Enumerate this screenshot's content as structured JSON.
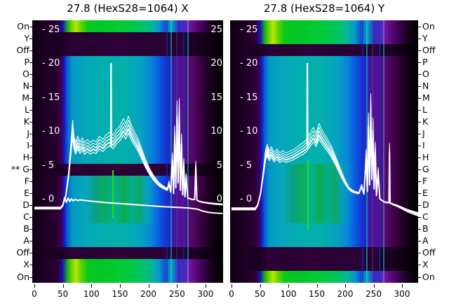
{
  "figure": {
    "background": "#ffffff",
    "colors": {
      "heat_green": "#00c828",
      "heat_yellowgreen": "#b6ea00",
      "heat_teal": "#01aeae",
      "heat_blue": "#0b55e2",
      "heat_purple": "#571092",
      "heat_dark_purple": "#2a0134",
      "heat_black": "#000000",
      "curve": "#ffffff",
      "artifact_green": "#2ce000",
      "text": "#000000"
    }
  },
  "chart_data": [
    {
      "type": "heatmap",
      "title": "27.8 (HexS28=1064) X",
      "x_ticks": [
        0,
        50,
        100,
        150,
        200,
        250,
        300
      ],
      "x_range": [
        0,
        330
      ],
      "inner_y_ticks": [
        25,
        20,
        15,
        10,
        5,
        0
      ],
      "inner_y_ticks_right": true,
      "legend": "none",
      "grid": false,
      "row_labels": [
        {
          "label": "On",
          "band": "green"
        },
        {
          "label": "Y",
          "band": "dark"
        },
        {
          "label": "Off",
          "band": "dark"
        },
        {
          "label": "P",
          "band": "teal"
        },
        {
          "label": "O",
          "band": "teal"
        },
        {
          "label": "N",
          "band": "teal"
        },
        {
          "label": "M",
          "band": "teal"
        },
        {
          "label": "L",
          "band": "teal"
        },
        {
          "label": "K",
          "band": "teal"
        },
        {
          "label": "J",
          "band": "teal"
        },
        {
          "label": "I",
          "band": "teal"
        },
        {
          "label": "H",
          "band": "teal"
        },
        {
          "label": "G",
          "band": "dark",
          "mark": "**"
        },
        {
          "label": "F",
          "band": "tealgreen"
        },
        {
          "label": "E",
          "band": "tealgreen"
        },
        {
          "label": "D",
          "band": "tealgreen"
        },
        {
          "label": "C",
          "band": "tealgreen"
        },
        {
          "label": "B",
          "band": "teal"
        },
        {
          "label": "A",
          "band": "teal"
        },
        {
          "label": "Off",
          "band": "dark"
        },
        {
          "label": "X",
          "band": "green"
        },
        {
          "label": "On",
          "band": "green"
        }
      ],
      "series": [
        {
          "name": "beam-profile-bundle",
          "scales": [
            1,
            1.06,
            1.12,
            0.94,
            1.18
          ],
          "points": [
            [
              0,
              -1.2
            ],
            [
              46,
              -1.2
            ],
            [
              50,
              -0.8
            ],
            [
              55,
              0.5
            ],
            [
              60,
              3.5
            ],
            [
              64,
              7
            ],
            [
              67,
              9.9
            ],
            [
              69,
              8.2
            ],
            [
              72,
              7.1
            ],
            [
              76,
              7.9
            ],
            [
              80,
              7.2
            ],
            [
              84,
              7.7
            ],
            [
              88,
              7.1
            ],
            [
              93,
              7.5
            ],
            [
              98,
              7.1
            ],
            [
              103,
              7.4
            ],
            [
              108,
              7.2
            ],
            [
              114,
              7.9
            ],
            [
              120,
              7.5
            ],
            [
              126,
              8.1
            ],
            [
              132,
              8.4
            ],
            [
              138,
              8.0
            ],
            [
              144,
              8.7
            ],
            [
              150,
              9.2
            ],
            [
              156,
              10.1
            ],
            [
              160,
              9.5
            ],
            [
              165,
              10.4
            ],
            [
              170,
              9.3
            ],
            [
              175,
              8.5
            ],
            [
              181,
              7.7
            ],
            [
              188,
              6.4
            ],
            [
              195,
              5.0
            ],
            [
              202,
              3.9
            ],
            [
              209,
              3.0
            ],
            [
              216,
              2.3
            ],
            [
              222,
              1.9
            ],
            [
              228,
              1.6
            ],
            [
              233,
              1.4
            ],
            [
              236,
              2.3
            ],
            [
              239,
              1.1
            ],
            [
              242,
              5.8
            ],
            [
              244,
              0.9
            ],
            [
              246,
              9.2
            ],
            [
              248,
              1.8
            ],
            [
              250,
              12.3
            ],
            [
              252,
              2.5
            ],
            [
              254,
              12.6
            ],
            [
              256,
              1.4
            ],
            [
              258,
              8.2
            ],
            [
              260,
              0.7
            ],
            [
              262,
              5.1
            ],
            [
              264,
              0.4
            ],
            [
              266,
              3.2
            ],
            [
              269,
              0.2
            ],
            [
              273,
              0.1
            ],
            [
              277,
              0.0
            ],
            [
              281,
              0.0
            ],
            [
              283,
              4.8
            ],
            [
              285,
              -0.1
            ],
            [
              290,
              -0.3
            ],
            [
              296,
              -0.4
            ],
            [
              305,
              -0.5
            ],
            [
              315,
              -0.6
            ],
            [
              330,
              -0.7
            ]
          ]
        },
        {
          "name": "vertical-spike",
          "scales": [
            1
          ],
          "points": [
            [
              134,
              7.8
            ],
            [
              134.5,
              20
            ],
            [
              135,
              7.8
            ]
          ]
        },
        {
          "name": "baseline-drift",
          "scales": [
            1
          ],
          "points": [
            [
              0,
              -1.3
            ],
            [
              46,
              -1.3
            ],
            [
              50,
              -0.9
            ],
            [
              53,
              0.3
            ],
            [
              56,
              -0.4
            ],
            [
              59,
              0.2
            ],
            [
              62,
              -0.3
            ],
            [
              65,
              0.1
            ],
            [
              68,
              -0.2
            ],
            [
              72,
              0.0
            ],
            [
              76,
              -0.15
            ],
            [
              80,
              -0.05
            ],
            [
              90,
              -0.15
            ],
            [
              105,
              -0.3
            ],
            [
              125,
              -0.45
            ],
            [
              150,
              -0.6
            ],
            [
              175,
              -0.75
            ],
            [
              200,
              -0.9
            ],
            [
              225,
              -1.05
            ],
            [
              250,
              -1.15
            ],
            [
              270,
              -1.25
            ],
            [
              285,
              -1.4
            ],
            [
              295,
              -1.7
            ],
            [
              305,
              -1.9
            ],
            [
              318,
              -2.0
            ],
            [
              330,
              -2.05
            ]
          ]
        }
      ],
      "artifacts": [
        {
          "name": "green-column",
          "x": 136,
          "v_top": 4.3,
          "v_bottom": -2.7
        }
      ]
    },
    {
      "type": "heatmap",
      "title": "27.8 (HexS28=1064) Y",
      "x_ticks": [
        0,
        50,
        100,
        150,
        200,
        250,
        300
      ],
      "x_range": [
        0,
        330
      ],
      "inner_y_ticks": [
        25,
        20,
        15,
        10,
        5,
        0
      ],
      "inner_y_ticks_right": false,
      "legend": "none",
      "grid": false,
      "row_labels": [
        {
          "label": "On",
          "band": "green"
        },
        {
          "label": "Y",
          "band": "green"
        },
        {
          "label": "Off",
          "band": "dark"
        },
        {
          "label": "P",
          "band": "teal"
        },
        {
          "label": "O",
          "band": "teal"
        },
        {
          "label": "N",
          "band": "teal"
        },
        {
          "label": "M",
          "band": "teal"
        },
        {
          "label": "L",
          "band": "teal"
        },
        {
          "label": "K",
          "band": "teal"
        },
        {
          "label": "J",
          "band": "teal"
        },
        {
          "label": "I",
          "band": "teal"
        },
        {
          "label": "H",
          "band": "teal"
        },
        {
          "label": "G",
          "band": "tealgreen"
        },
        {
          "label": "F",
          "band": "tealgreen"
        },
        {
          "label": "E",
          "band": "tealgreen"
        },
        {
          "label": "D",
          "band": "tealgreen"
        },
        {
          "label": "C",
          "band": "tealgreen"
        },
        {
          "label": "B",
          "band": "teal"
        },
        {
          "label": "A",
          "band": "teal"
        },
        {
          "label": "Off",
          "band": "dark"
        },
        {
          "label": "X",
          "band": "dark"
        },
        {
          "label": "On",
          "band": "green"
        }
      ],
      "series": [
        {
          "name": "beam-profile-bundle",
          "scales": [
            1,
            1.06,
            1.12,
            0.94,
            1.18
          ],
          "points": [
            [
              0,
              -1.3
            ],
            [
              42,
              -1.3
            ],
            [
              46,
              -0.8
            ],
            [
              51,
              0.8
            ],
            [
              56,
              3.8
            ],
            [
              60,
              6.2
            ],
            [
              63,
              6.9
            ],
            [
              66,
              6.1
            ],
            [
              70,
              6.6
            ],
            [
              75,
              5.9
            ],
            [
              80,
              6.3
            ],
            [
              85,
              5.8
            ],
            [
              90,
              6.1
            ],
            [
              96,
              5.8
            ],
            [
              102,
              6.0
            ],
            [
              108,
              6.2
            ],
            [
              114,
              6.5
            ],
            [
              120,
              6.8
            ],
            [
              126,
              7.1
            ],
            [
              132,
              7.5
            ],
            [
              138,
              8.3
            ],
            [
              144,
              9.0
            ],
            [
              149,
              8.3
            ],
            [
              154,
              9.5
            ],
            [
              159,
              8.7
            ],
            [
              164,
              8.1
            ],
            [
              170,
              7.4
            ],
            [
              176,
              6.6
            ],
            [
              182,
              5.6
            ],
            [
              188,
              4.5
            ],
            [
              194,
              3.4
            ],
            [
              200,
              2.4
            ],
            [
              206,
              1.6
            ],
            [
              212,
              1.2
            ],
            [
              218,
              1.0
            ],
            [
              224,
              0.9
            ],
            [
              229,
              1.9
            ],
            [
              233,
              0.8
            ],
            [
              237,
              6.3
            ],
            [
              239,
              1.2
            ],
            [
              241,
              10.8
            ],
            [
              243,
              2.2
            ],
            [
              245,
              13.2
            ],
            [
              247,
              3.0
            ],
            [
              249,
              10.2
            ],
            [
              251,
              1.6
            ],
            [
              253,
              7.2
            ],
            [
              255,
              0.6
            ],
            [
              258,
              4.0
            ],
            [
              261,
              0.1
            ],
            [
              264,
              -0.1
            ],
            [
              268,
              -0.3
            ],
            [
              271,
              -0.4
            ],
            [
              277,
              -0.45
            ],
            [
              278,
              7.0
            ],
            [
              279,
              -0.5
            ],
            [
              285,
              -0.7
            ],
            [
              292,
              -0.9
            ],
            [
              300,
              -1.2
            ],
            [
              308,
              -1.5
            ],
            [
              318,
              -1.8
            ],
            [
              330,
              -2.1
            ]
          ]
        },
        {
          "name": "vertical-spike",
          "scales": [
            1
          ],
          "points": [
            [
              133,
              8
            ],
            [
              133.5,
              20
            ],
            [
              134,
              8
            ]
          ]
        }
      ],
      "artifacts": [
        {
          "name": "green-column",
          "x": 133,
          "v_top": 5.8,
          "v_bottom": -4.5
        }
      ]
    }
  ]
}
